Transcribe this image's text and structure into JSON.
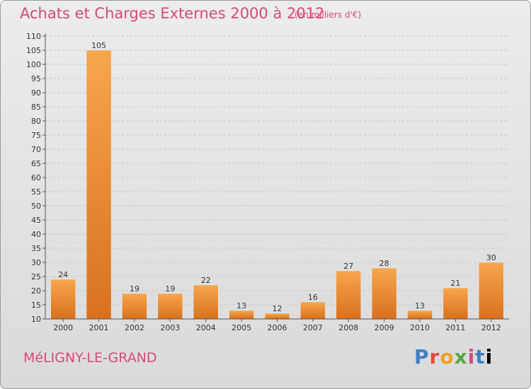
{
  "header": {
    "title": "Achats et Charges Externes 2000 à 2012",
    "subtitle": "(en milliers d'€)"
  },
  "footer": {
    "town": "MéLIGNY-LE-GRAND",
    "logo": [
      "P",
      "r",
      "o",
      "x",
      "i",
      "t",
      "i"
    ]
  },
  "colors": {
    "bar_light": "#f7a64d",
    "bar_dark": "#d8711d",
    "text_accent": "#d64a7a"
  },
  "chart_data": {
    "type": "bar",
    "title": "Achats et Charges Externes 2000 à 2012",
    "subtitle": "(en milliers d'€)",
    "categories": [
      "2000",
      "2001",
      "2002",
      "2003",
      "2004",
      "2005",
      "2006",
      "2007",
      "2008",
      "2009",
      "2010",
      "2011",
      "2012"
    ],
    "values": [
      24,
      105,
      19,
      19,
      22,
      13,
      12,
      16,
      27,
      28,
      13,
      21,
      30
    ],
    "ylim": [
      10,
      110
    ],
    "yticks": [
      "10",
      "15",
      "20",
      "25",
      "30",
      "35",
      "40",
      "45",
      "50",
      "55",
      "60",
      "65",
      "70",
      "75",
      "80",
      "85",
      "90",
      "95",
      "100",
      "105",
      "110"
    ],
    "grid": true,
    "xlabel": "",
    "ylabel": ""
  }
}
